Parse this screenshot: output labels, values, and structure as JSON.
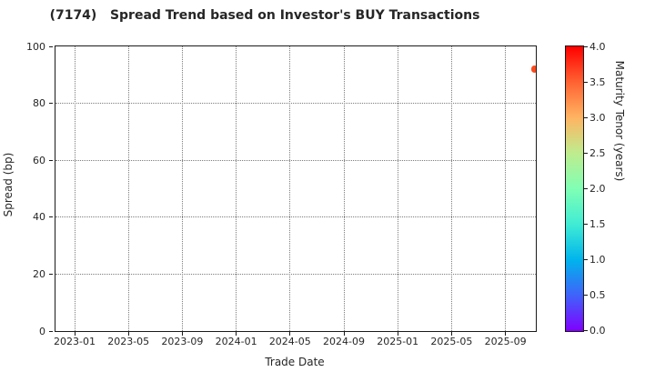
{
  "colors": {
    "background": "#ffffff",
    "spine": "#1a1a1a",
    "grid": "#7d7d7d",
    "text": "#262626",
    "point": "#fb4a1d"
  },
  "chart_data": {
    "type": "scatter",
    "title": "(7174)   Spread Trend based on Investor's BUY Transactions",
    "xlabel": "Trade Date",
    "ylabel": "Spread (bp)",
    "x_tick_labels": [
      "2023-01",
      "2023-05",
      "2023-09",
      "2024-01",
      "2024-05",
      "2024-09",
      "2025-01",
      "2025-05",
      "2025-09"
    ],
    "y_tick_labels": [
      "0",
      "20",
      "40",
      "60",
      "80",
      "100"
    ],
    "ylim": [
      0,
      100
    ],
    "grid": true,
    "grid_linestyle": "dotted",
    "points": [
      {
        "trade_date": "2025-10",
        "spread_bp": 92,
        "maturity_tenor_years": 3.6,
        "color": "#fb4a1d",
        "x_frac": 0.9972
      }
    ],
    "colorbar": {
      "label": "Maturity Tenor (years)",
      "tick_labels": [
        "0.0",
        "0.5",
        "1.0",
        "1.5",
        "2.0",
        "2.5",
        "3.0",
        "3.5",
        "4.0"
      ],
      "range": [
        0.0,
        4.0
      ],
      "colormap": "rainbow",
      "gradient": [
        {
          "stop": 0.0,
          "color": "#8000ff"
        },
        {
          "stop": 0.125,
          "color": "#4062fa"
        },
        {
          "stop": 0.25,
          "color": "#00b4ec"
        },
        {
          "stop": 0.375,
          "color": "#40ecd4"
        },
        {
          "stop": 0.5,
          "color": "#80ffb4"
        },
        {
          "stop": 0.625,
          "color": "#bfec8e"
        },
        {
          "stop": 0.75,
          "color": "#ffb462"
        },
        {
          "stop": 0.875,
          "color": "#ff6232"
        },
        {
          "stop": 1.0,
          "color": "#ff0000"
        }
      ]
    }
  }
}
